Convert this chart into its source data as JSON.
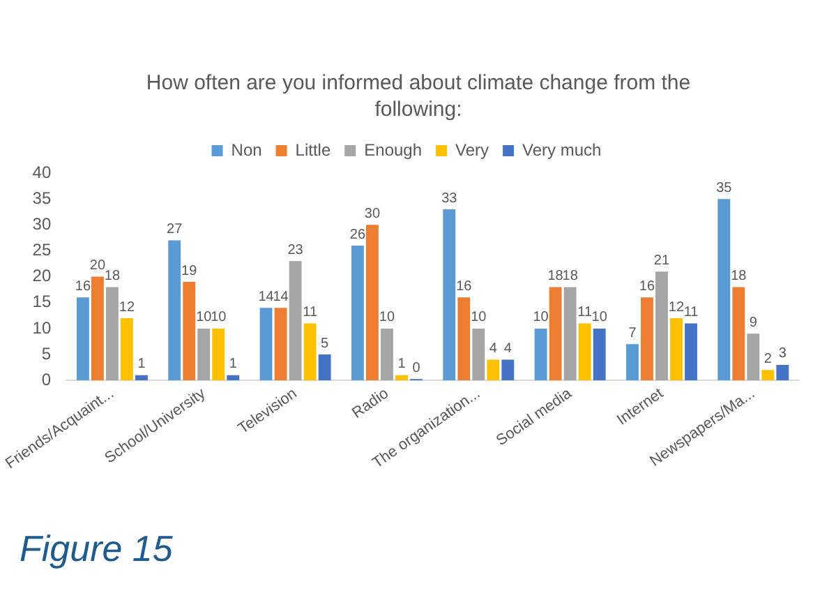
{
  "chart_data": {
    "type": "bar",
    "title": "How often are you informed about climate change from the following:",
    "categories": [
      "Friends/Acquaint...",
      "School/University",
      "Television",
      "Radio",
      "The organization...",
      "Social media",
      "Internet",
      "Newspapers/Ma..."
    ],
    "series": [
      {
        "name": "Non",
        "color": "#5b9bd5",
        "values": [
          16,
          27,
          14,
          26,
          33,
          10,
          7,
          35
        ]
      },
      {
        "name": "Little",
        "color": "#ed7d31",
        "values": [
          20,
          19,
          14,
          30,
          16,
          18,
          16,
          18
        ]
      },
      {
        "name": "Enough",
        "color": "#a5a5a5",
        "values": [
          18,
          10,
          23,
          10,
          10,
          18,
          21,
          9
        ]
      },
      {
        "name": "Very",
        "color": "#ffc000",
        "values": [
          12,
          10,
          11,
          1,
          4,
          11,
          12,
          2
        ]
      },
      {
        "name": "Very much",
        "color": "#4472c4",
        "values": [
          1,
          1,
          5,
          0,
          4,
          10,
          11,
          3
        ]
      }
    ],
    "ylim": [
      0,
      40
    ],
    "yticks": [
      0,
      5,
      10,
      15,
      20,
      25,
      30,
      35,
      40
    ],
    "grid": false,
    "legend": "top",
    "data_labels": true,
    "annotations": [
      "Figure 15"
    ]
  }
}
